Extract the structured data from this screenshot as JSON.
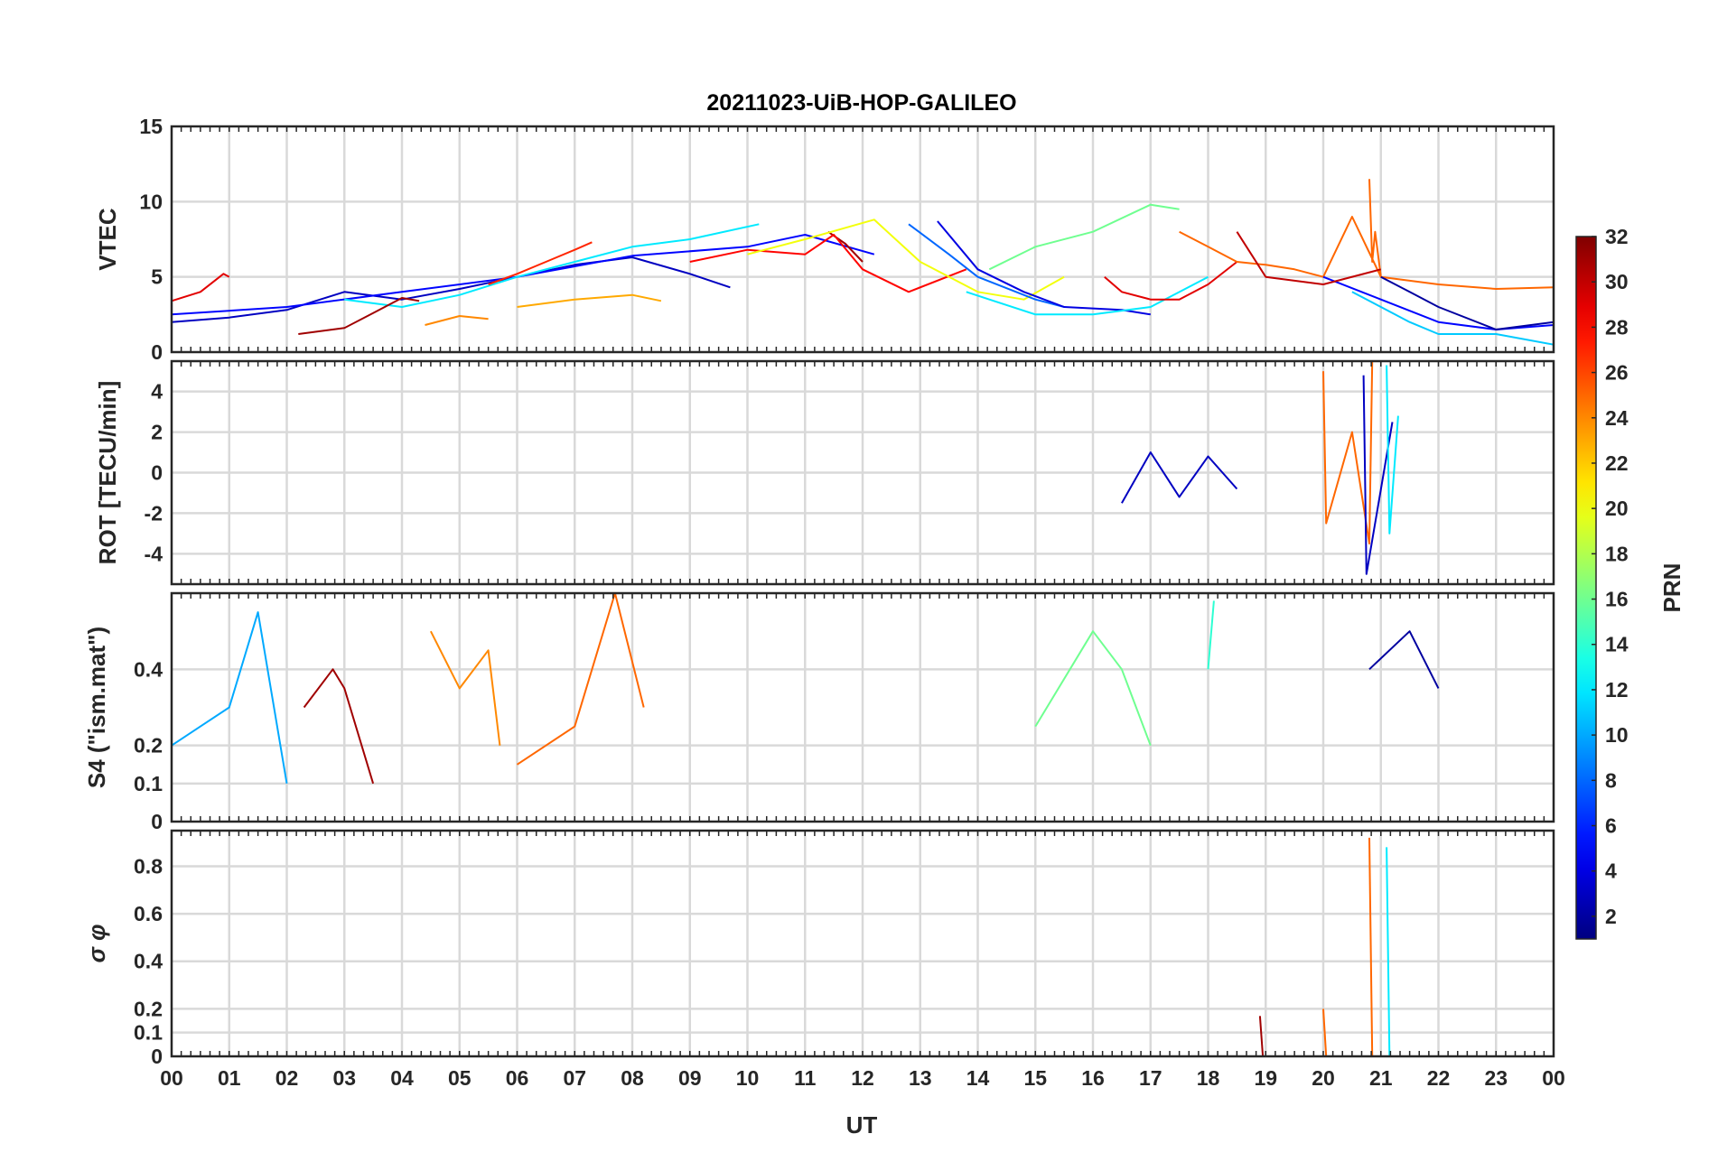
{
  "chart_data": {
    "type": "line",
    "title": "20211023-UiB-HOP-GALILEO",
    "xlabel": "UT",
    "x_ticks": [
      "00",
      "01",
      "02",
      "03",
      "04",
      "05",
      "06",
      "07",
      "08",
      "09",
      "10",
      "11",
      "12",
      "13",
      "14",
      "15",
      "16",
      "17",
      "18",
      "19",
      "20",
      "21",
      "22",
      "23",
      "00"
    ],
    "xlim": [
      0,
      24
    ],
    "grid": true,
    "colorbar": {
      "label": "PRN",
      "colormap": "jet",
      "range": [
        1,
        32
      ],
      "ticks": [
        2,
        4,
        6,
        8,
        10,
        12,
        14,
        16,
        18,
        20,
        22,
        24,
        26,
        28,
        30,
        32
      ]
    },
    "panels": [
      {
        "id": "vtec",
        "ylabel": "VTEC",
        "ylim": [
          0,
          15
        ],
        "y_ticks": [
          0,
          5,
          10,
          15
        ],
        "series": [
          {
            "prn": 3,
            "x": [
              0,
              1,
              2,
              3,
              4,
              5,
              6,
              7,
              8,
              9,
              9.7
            ],
            "y": [
              2.0,
              2.3,
              2.8,
              4.0,
              3.5,
              4.2,
              5.0,
              5.8,
              6.3,
              5.2,
              4.3
            ]
          },
          {
            "prn": 5,
            "x": [
              0,
              2,
              4,
              6,
              8,
              10,
              11,
              12.2
            ],
            "y": [
              2.5,
              3.0,
              4.0,
              5.0,
              6.4,
              7.0,
              7.8,
              6.5
            ]
          },
          {
            "prn": 29,
            "x": [
              0,
              0.5,
              0.9,
              1.0
            ],
            "y": [
              3.4,
              4.0,
              5.2,
              5.0
            ]
          },
          {
            "prn": 12,
            "x": [
              3,
              4,
              5,
              6,
              7,
              8,
              9,
              10.2
            ],
            "y": [
              3.5,
              3.0,
              3.8,
              5.0,
              6.0,
              7.0,
              7.5,
              8.5
            ]
          },
          {
            "prn": 27,
            "x": [
              5.5,
              6,
              6.5,
              7,
              7.3
            ],
            "y": [
              4.5,
              5.2,
              6.0,
              6.8,
              7.3
            ]
          },
          {
            "prn": 31,
            "x": [
              2.2,
              3,
              3.5,
              4,
              4.3
            ],
            "y": [
              1.2,
              1.6,
              2.6,
              3.6,
              3.4
            ]
          },
          {
            "prn": 31,
            "x": [
              11.4,
              11.7,
              12.0
            ],
            "y": [
              8.0,
              7.2,
              6.0
            ]
          },
          {
            "prn": 28,
            "x": [
              9,
              10,
              11,
              11.5,
              12,
              12.8,
              13.8
            ],
            "y": [
              6.0,
              6.8,
              6.5,
              7.8,
              5.5,
              4.0,
              5.5
            ]
          },
          {
            "prn": 23,
            "x": [
              6,
              7,
              8,
              8.5
            ],
            "y": [
              3.0,
              3.5,
              3.8,
              3.4
            ]
          },
          {
            "prn": 24,
            "x": [
              4.4,
              5,
              5.5
            ],
            "y": [
              1.8,
              2.4,
              2.2
            ]
          },
          {
            "prn": 20,
            "x": [
              10,
              11,
              12.2,
              13,
              14,
              14.8,
              15.5
            ],
            "y": [
              6.5,
              7.5,
              8.8,
              6.0,
              4.0,
              3.5,
              5.0
            ]
          },
          {
            "prn": 8,
            "x": [
              12.8,
              13.5,
              14,
              15,
              15.5
            ],
            "y": [
              8.5,
              6.5,
              5.0,
              3.5,
              3.0
            ]
          },
          {
            "prn": 4,
            "x": [
              13.3,
              14,
              14.8,
              15.5,
              16.5,
              17
            ],
            "y": [
              8.7,
              5.5,
              4.0,
              3.0,
              2.8,
              2.5
            ]
          },
          {
            "prn": 16,
            "x": [
              14.2,
              15,
              16,
              17,
              17.5
            ],
            "y": [
              5.5,
              7.0,
              8.0,
              9.8,
              9.5
            ]
          },
          {
            "prn": 12,
            "x": [
              13.8,
              14.2,
              15,
              16,
              17,
              18
            ],
            "y": [
              4.0,
              3.5,
              2.5,
              2.5,
              3.0,
              5.0
            ]
          },
          {
            "prn": 29,
            "x": [
              16.2,
              16.5,
              17,
              17.5,
              18,
              18.5
            ],
            "y": [
              5.0,
              4.0,
              3.5,
              3.5,
              4.5,
              6.0
            ]
          },
          {
            "prn": 25,
            "x": [
              17.5,
              18,
              18.5,
              19,
              19.5,
              20,
              20.5,
              21,
              22,
              23,
              24
            ],
            "y": [
              8.0,
              7.0,
              6.0,
              5.8,
              5.5,
              5.0,
              9.0,
              5.0,
              4.5,
              4.2,
              4.3
            ]
          },
          {
            "prn": 25,
            "x": [
              20.8,
              20.85,
              20.9,
              21.0
            ],
            "y": [
              11.5,
              6.0,
              8.0,
              5.0
            ]
          },
          {
            "prn": 5,
            "x": [
              20,
              21,
              22,
              23,
              24
            ],
            "y": [
              5.0,
              3.5,
              2.0,
              1.5,
              1.8
            ]
          },
          {
            "prn": 11,
            "x": [
              20.5,
              21,
              21.5,
              22,
              23,
              24
            ],
            "y": [
              4.0,
              3.0,
              2.0,
              1.2,
              1.2,
              0.5
            ]
          },
          {
            "prn": 30,
            "x": [
              18.5,
              19,
              20,
              21
            ],
            "y": [
              8.0,
              5.0,
              4.5,
              5.5
            ]
          },
          {
            "prn": 2,
            "x": [
              21,
              21.5,
              22,
              23,
              24
            ],
            "y": [
              5.0,
              4.0,
              3.0,
              1.5,
              2.0
            ]
          }
        ]
      },
      {
        "id": "rot",
        "ylabel": "ROT [TECU/min]",
        "ylim": [
          -5.5,
          5.5
        ],
        "y_ticks": [
          -4,
          -2,
          0,
          2,
          4
        ],
        "notes": "values near 0 most of the day; disturbances around 16.5-18.5 UT and strong spikes 20-21.5 UT",
        "series": [
          {
            "prn": 3,
            "x": [
              16.5,
              17,
              17.5,
              18,
              18.5
            ],
            "y": [
              -1.5,
              1.0,
              -1.2,
              0.8,
              -0.8
            ]
          },
          {
            "prn": 25,
            "x": [
              20.0,
              20.05,
              20.5,
              20.8,
              20.85
            ],
            "y": [
              5.0,
              -2.5,
              2.0,
              -3.5,
              5.5
            ]
          },
          {
            "prn": 3,
            "x": [
              20.7,
              20.75,
              21.2
            ],
            "y": [
              4.8,
              -5.0,
              2.5
            ]
          },
          {
            "prn": 12,
            "x": [
              21.1,
              21.15,
              21.3
            ],
            "y": [
              5.3,
              -3.0,
              2.8
            ]
          }
        ]
      },
      {
        "id": "s4",
        "ylabel": "S4 (\"ism.mat\")",
        "ylim": [
          0,
          0.6
        ],
        "y_ticks": [
          0,
          0.1,
          0.2,
          0.4
        ],
        "notes": "baseline around 0.05-0.1 with bursts up to ~0.55",
        "series": [
          {
            "prn": 10,
            "x": [
              0,
              0.5,
              1.0,
              1.5,
              2.0
            ],
            "y": [
              0.2,
              0.25,
              0.3,
              0.55,
              0.1
            ]
          },
          {
            "prn": 31,
            "x": [
              2.3,
              2.8,
              3.0,
              3.5
            ],
            "y": [
              0.3,
              0.4,
              0.35,
              0.1
            ]
          },
          {
            "prn": 24,
            "x": [
              4.5,
              5.0,
              5.5,
              5.7
            ],
            "y": [
              0.5,
              0.35,
              0.45,
              0.2
            ]
          },
          {
            "prn": 25,
            "x": [
              6.0,
              7.0,
              7.7,
              8.2
            ],
            "y": [
              0.15,
              0.25,
              0.6,
              0.3
            ]
          },
          {
            "prn": 16,
            "x": [
              15.0,
              16.0,
              16.5,
              17.0
            ],
            "y": [
              0.25,
              0.5,
              0.4,
              0.2
            ]
          },
          {
            "prn": 14,
            "x": [
              18.0,
              18.1
            ],
            "y": [
              0.4,
              0.58
            ]
          },
          {
            "prn": 2,
            "x": [
              20.8,
              21.5,
              22.0
            ],
            "y": [
              0.4,
              0.5,
              0.35
            ]
          }
        ]
      },
      {
        "id": "sigma_phi",
        "ylabel": "σ φ",
        "ylim": [
          0,
          0.95
        ],
        "y_ticks": [
          0,
          0.1,
          0.2,
          0.4,
          0.6,
          0.8
        ],
        "notes": "near 0 most of the day; spikes near 19, 20, 20.8 and 21.1 UT",
        "series": [
          {
            "prn": 31,
            "x": [
              18.9,
              18.95
            ],
            "y": [
              0.17,
              0.0
            ]
          },
          {
            "prn": 25,
            "x": [
              20.0,
              20.05
            ],
            "y": [
              0.2,
              0.0
            ]
          },
          {
            "prn": 25,
            "x": [
              20.8,
              20.85
            ],
            "y": [
              0.92,
              0.0
            ]
          },
          {
            "prn": 12,
            "x": [
              21.1,
              21.15
            ],
            "y": [
              0.88,
              0.0
            ]
          }
        ]
      }
    ]
  }
}
